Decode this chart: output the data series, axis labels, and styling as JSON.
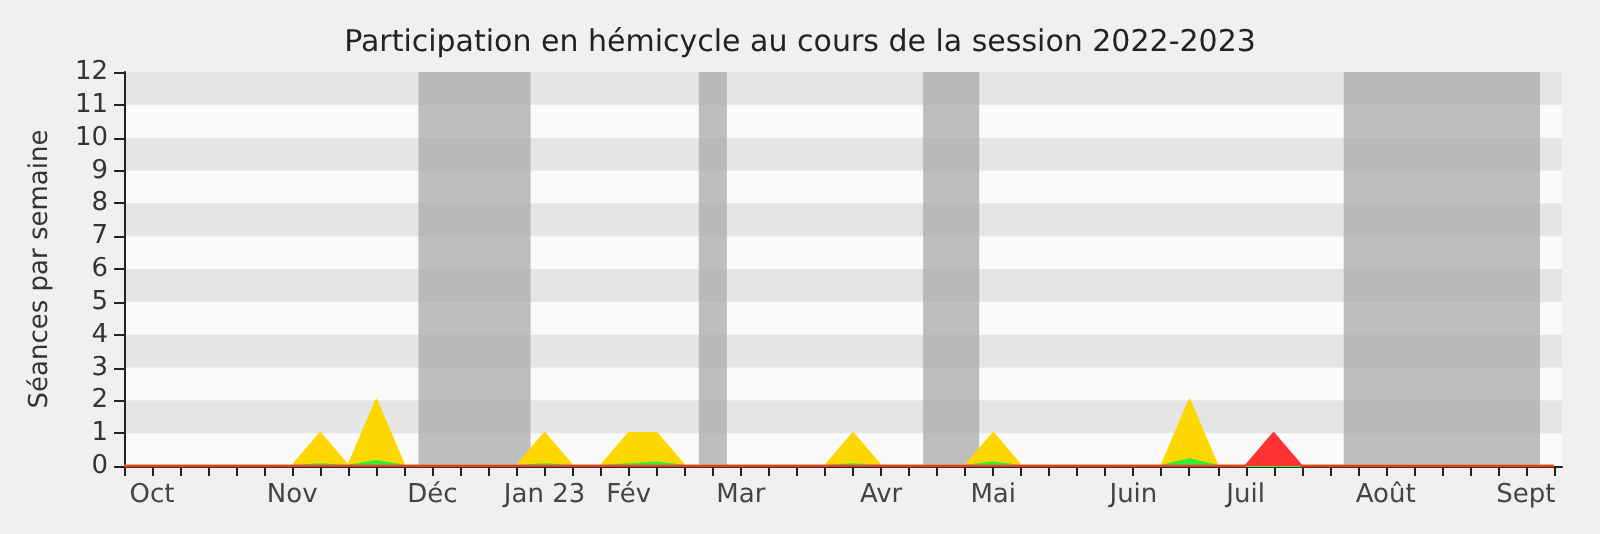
{
  "chart_data": {
    "type": "area",
    "title": "Participation en hémicycle au cours de la session 2022-2023",
    "ylabel": "Séances par semaine",
    "x": [
      "2022-10-03",
      "2022-10-10",
      "2022-10-17",
      "2022-10-24",
      "2022-10-31",
      "2022-11-07",
      "2022-11-14",
      "2022-11-21",
      "2022-11-28",
      "2022-12-05",
      "2022-12-12",
      "2022-12-19",
      "2022-12-26",
      "2023-01-02",
      "2023-01-09",
      "2023-01-16",
      "2023-01-23",
      "2023-01-30",
      "2023-02-06",
      "2023-02-13",
      "2023-02-20",
      "2023-02-27",
      "2023-03-06",
      "2023-03-13",
      "2023-03-20",
      "2023-03-27",
      "2023-04-03",
      "2023-04-10",
      "2023-04-17",
      "2023-04-24",
      "2023-05-01",
      "2023-05-08",
      "2023-05-15",
      "2023-05-22",
      "2023-05-29",
      "2023-06-05",
      "2023-06-12",
      "2023-06-19",
      "2023-06-26",
      "2023-07-03",
      "2023-07-10",
      "2023-07-17",
      "2023-07-24",
      "2023-07-31",
      "2023-08-07",
      "2023-08-14",
      "2023-08-21",
      "2023-08-28",
      "2023-09-04",
      "2023-09-11",
      "2023-09-18",
      "2023-09-25"
    ],
    "series": [
      {
        "color": "#ffd700",
        "values": [
          0,
          0,
          0,
          0,
          0,
          0,
          0,
          1,
          0,
          2,
          0,
          0,
          0,
          0,
          0,
          1,
          0,
          0,
          1,
          1,
          0,
          0,
          0,
          0,
          0,
          0,
          1,
          0,
          0,
          0,
          0,
          1,
          0,
          0,
          0,
          0,
          0,
          0,
          2,
          0,
          0,
          0,
          0,
          0,
          0,
          0,
          0,
          0,
          0,
          0,
          0,
          0
        ]
      },
      {
        "color": "#33ee33",
        "values": [
          0,
          0,
          0,
          0,
          0,
          0,
          0,
          0.05,
          0,
          0.15,
          0,
          0,
          0,
          0,
          0,
          0.05,
          0,
          0,
          0.05,
          0.1,
          0,
          0,
          0,
          0,
          0,
          0,
          0.05,
          0,
          0,
          0,
          0,
          0.1,
          0,
          0,
          0,
          0,
          0,
          0,
          0.2,
          0,
          0,
          0,
          0,
          0,
          0,
          0,
          0,
          0,
          0,
          0,
          0,
          0
        ]
      },
      {
        "color": "#ff3333",
        "values": [
          0,
          0,
          0,
          0,
          0,
          0,
          0,
          0,
          0,
          0,
          0,
          0,
          0,
          0,
          0,
          0,
          0,
          0,
          0,
          0,
          0,
          0,
          0,
          0,
          0,
          0,
          0,
          0,
          0,
          0,
          0,
          0,
          0,
          0,
          0,
          0,
          0,
          0,
          0,
          0,
          0,
          1,
          0,
          0,
          0,
          0,
          0,
          0,
          0,
          0,
          0,
          0
        ]
      }
    ],
    "xlim": [
      "2022-10-03",
      "2023-09-27"
    ],
    "xticks": [
      {
        "value": "2022-10-03",
        "label": null
      },
      {
        "value": "2022-10-10",
        "label": "Oct"
      },
      {
        "value": "2022-10-17",
        "label": null
      },
      {
        "value": "2022-10-24",
        "label": null
      },
      {
        "value": "2022-10-31",
        "label": null
      },
      {
        "value": "2022-11-07",
        "label": null
      },
      {
        "value": "2022-11-14",
        "label": "Nov"
      },
      {
        "value": "2022-11-21",
        "label": null
      },
      {
        "value": "2022-11-28",
        "label": null
      },
      {
        "value": "2022-12-05",
        "label": null
      },
      {
        "value": "2022-12-12",
        "label": null
      },
      {
        "value": "2022-12-19",
        "label": "Déc"
      },
      {
        "value": "2022-12-26",
        "label": null
      },
      {
        "value": "2023-01-02",
        "label": null
      },
      {
        "value": "2023-01-09",
        "label": null
      },
      {
        "value": "2023-01-16",
        "label": "Jan 23"
      },
      {
        "value": "2023-01-23",
        "label": null
      },
      {
        "value": "2023-01-30",
        "label": null
      },
      {
        "value": "2023-02-06",
        "label": "Fév"
      },
      {
        "value": "2023-02-13",
        "label": null
      },
      {
        "value": "2023-02-20",
        "label": null
      },
      {
        "value": "2023-02-27",
        "label": null
      },
      {
        "value": "2023-03-06",
        "label": "Mar"
      },
      {
        "value": "2023-03-13",
        "label": null
      },
      {
        "value": "2023-03-20",
        "label": null
      },
      {
        "value": "2023-03-27",
        "label": null
      },
      {
        "value": "2023-04-03",
        "label": null
      },
      {
        "value": "2023-04-10",
        "label": "Avr"
      },
      {
        "value": "2023-04-17",
        "label": null
      },
      {
        "value": "2023-04-24",
        "label": null
      },
      {
        "value": "2023-05-01",
        "label": null
      },
      {
        "value": "2023-05-08",
        "label": "Mai"
      },
      {
        "value": "2023-05-15",
        "label": null
      },
      {
        "value": "2023-05-22",
        "label": null
      },
      {
        "value": "2023-05-29",
        "label": null
      },
      {
        "value": "2023-06-05",
        "label": null
      },
      {
        "value": "2023-06-12",
        "label": "Juin"
      },
      {
        "value": "2023-06-19",
        "label": null
      },
      {
        "value": "2023-06-26",
        "label": null
      },
      {
        "value": "2023-07-03",
        "label": null
      },
      {
        "value": "2023-07-10",
        "label": "Juil"
      },
      {
        "value": "2023-07-17",
        "label": null
      },
      {
        "value": "2023-07-24",
        "label": null
      },
      {
        "value": "2023-07-31",
        "label": null
      },
      {
        "value": "2023-08-07",
        "label": null
      },
      {
        "value": "2023-08-14",
        "label": "Août"
      },
      {
        "value": "2023-08-21",
        "label": null
      },
      {
        "value": "2023-08-28",
        "label": null
      },
      {
        "value": "2023-09-04",
        "label": null
      },
      {
        "value": "2023-09-11",
        "label": null
      },
      {
        "value": "2023-09-18",
        "label": "Sept"
      },
      {
        "value": "2023-09-25",
        "label": null
      }
    ],
    "ylim": [
      0,
      12
    ],
    "yticks": [
      0,
      1,
      2,
      3,
      4,
      5,
      6,
      7,
      8,
      9,
      10,
      11,
      12
    ],
    "bands": [
      {
        "axis": "x",
        "from": "2022-12-15T12:00",
        "to": "2023-01-12T12:00",
        "color": "#aaaaaa"
      },
      {
        "axis": "x",
        "from": "2023-02-23T12:00",
        "to": "2023-03-02T12:00",
        "color": "#aaaaaa"
      },
      {
        "axis": "x",
        "from": "2023-04-20T12:00",
        "to": "2023-05-04T12:00",
        "color": "#aaaaaa"
      },
      {
        "axis": "x",
        "from": "2023-08-03T12:00",
        "to": "2023-09-21T12:00",
        "color": "#aaaaaa"
      }
    ],
    "marker": "none"
  }
}
